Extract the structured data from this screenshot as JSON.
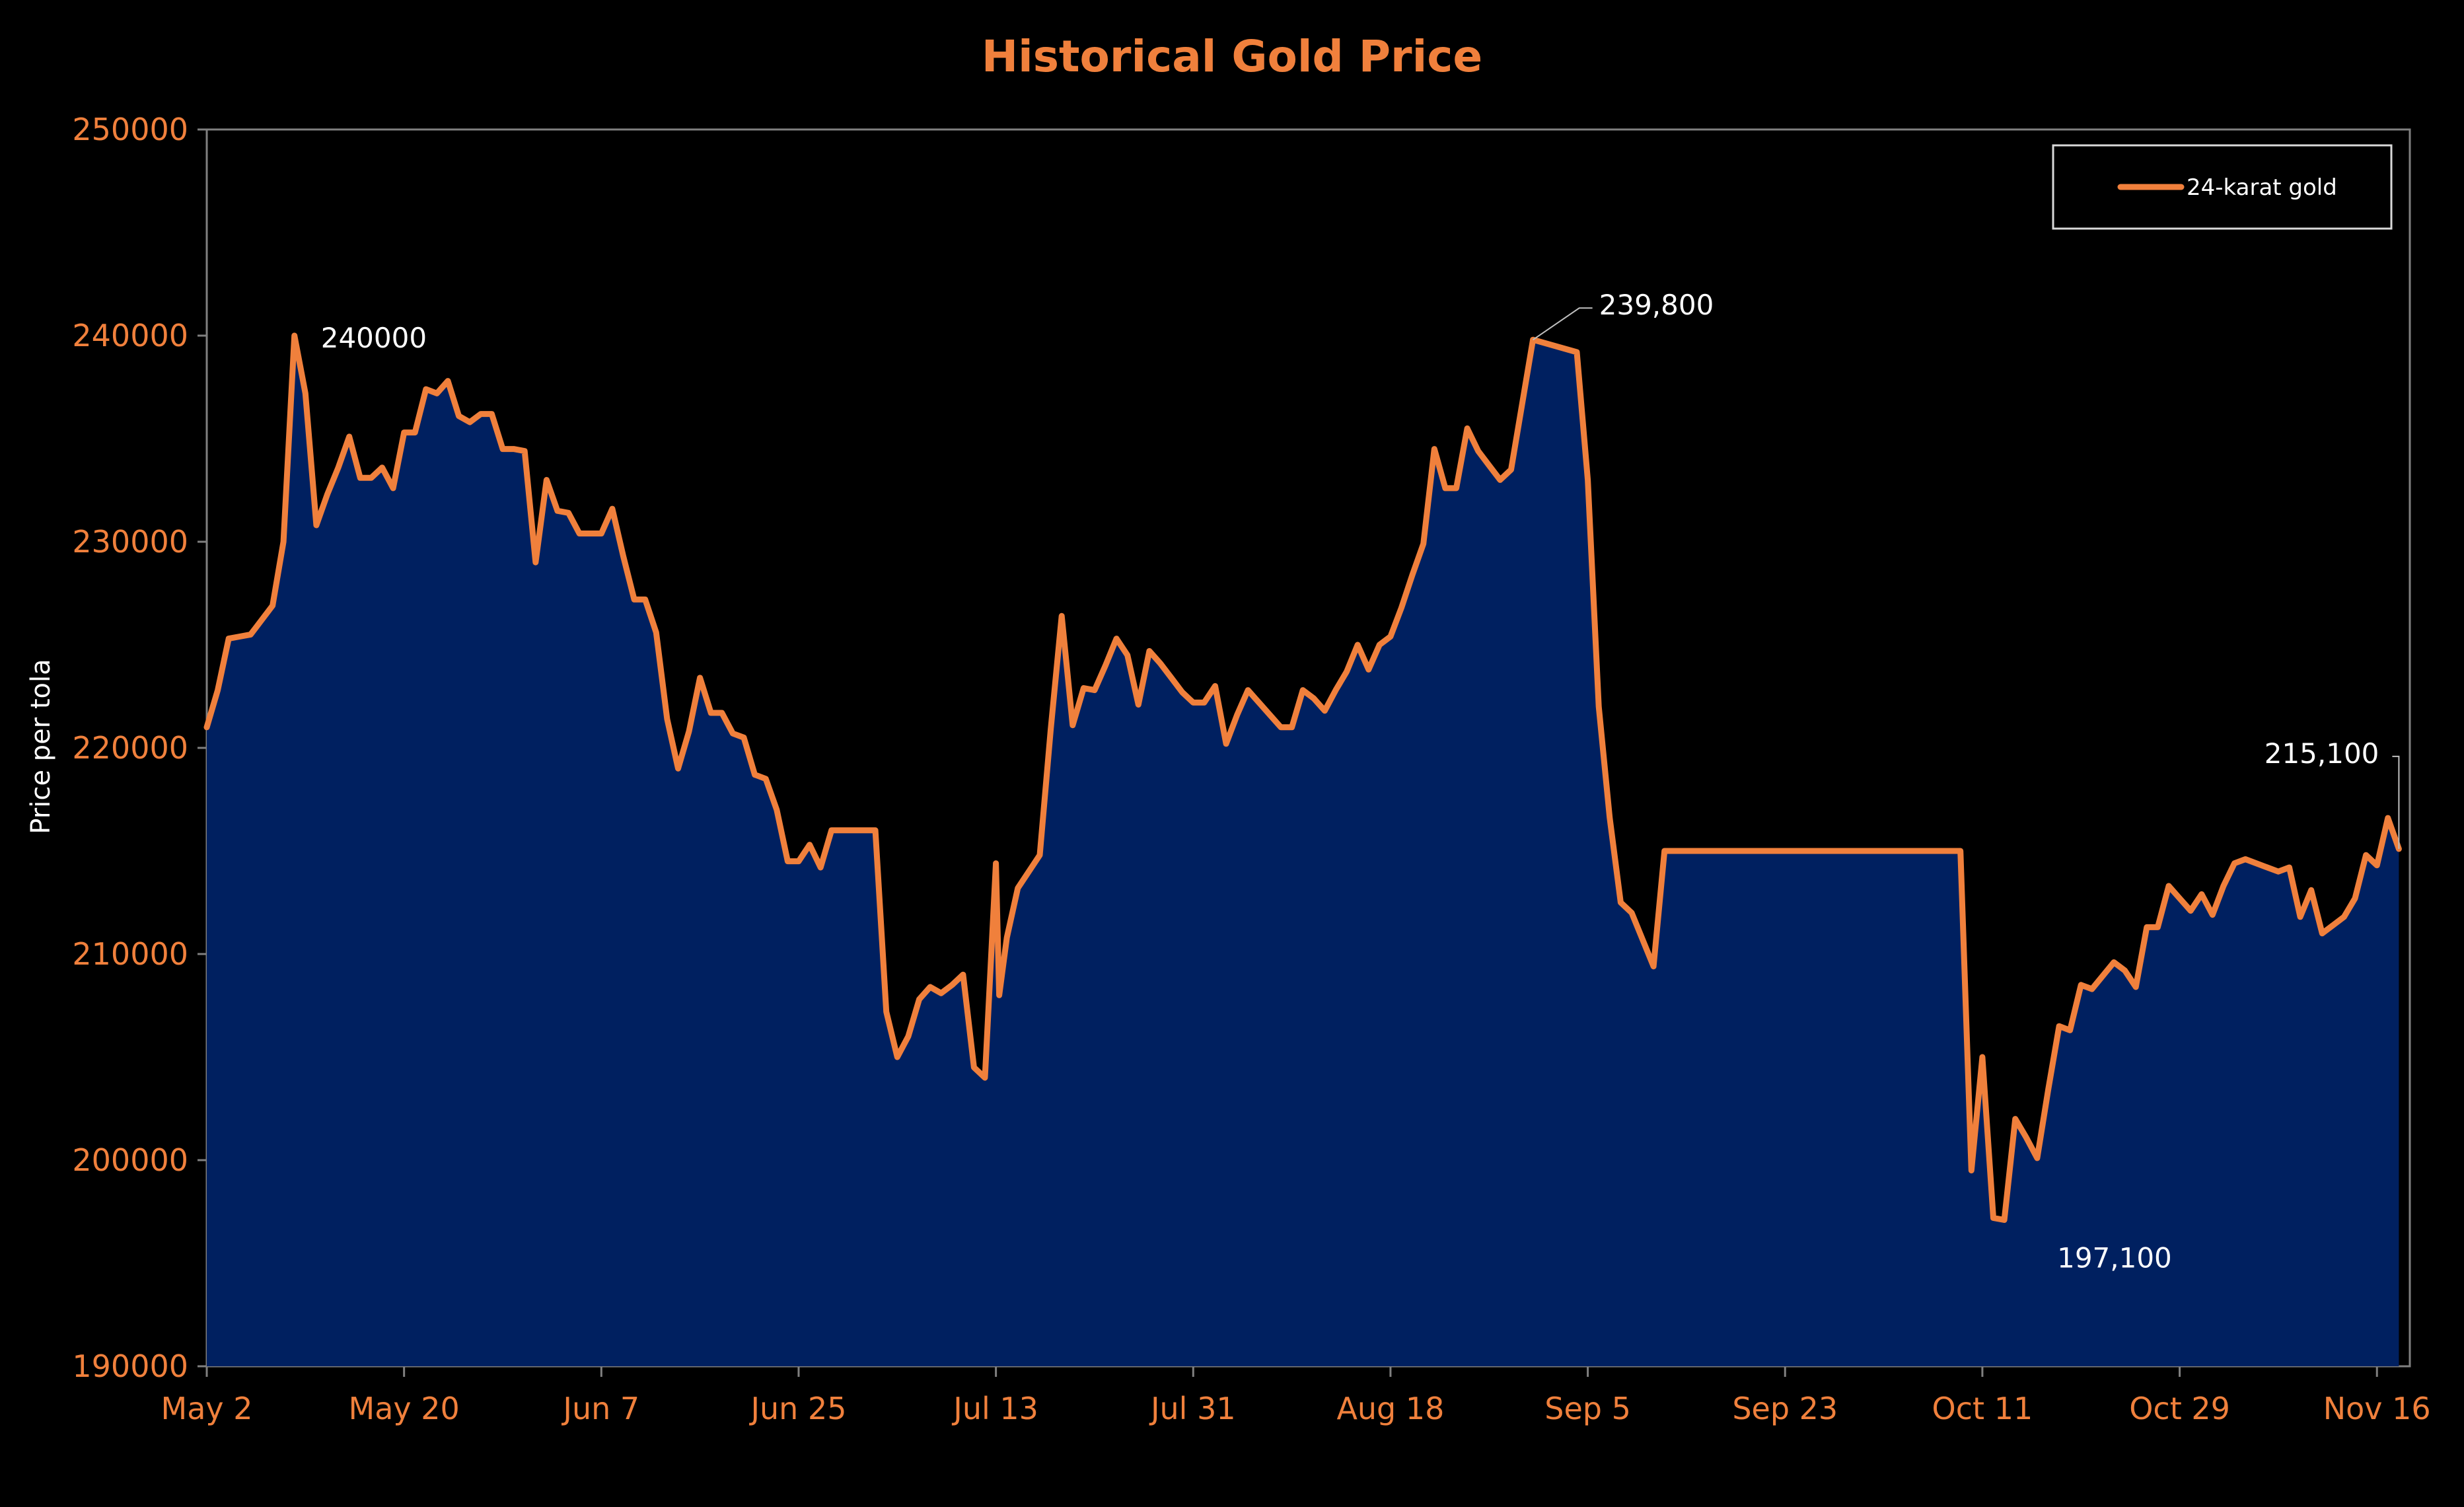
{
  "chart_data": {
    "type": "area",
    "title": "Historical Gold Price",
    "ylabel": "Price per tola",
    "xlabel": "",
    "ylim": [
      190000,
      250000
    ],
    "y_ticks": [
      190000,
      200000,
      210000,
      220000,
      230000,
      240000,
      250000
    ],
    "x_range_days": [
      0,
      201
    ],
    "x_ticks": [
      {
        "day": 0,
        "label": "May 2"
      },
      {
        "day": 18,
        "label": "May 20"
      },
      {
        "day": 36,
        "label": "Jun 7"
      },
      {
        "day": 54,
        "label": "Jun 25"
      },
      {
        "day": 72,
        "label": "Jul 13"
      },
      {
        "day": 90,
        "label": "Jul 31"
      },
      {
        "day": 108,
        "label": "Aug 18"
      },
      {
        "day": 126,
        "label": "Sep 5"
      },
      {
        "day": 144,
        "label": "Sep 23"
      },
      {
        "day": 162,
        "label": "Oct 11"
      },
      {
        "day": 180,
        "label": "Oct 29"
      },
      {
        "day": 198,
        "label": "Nov 16"
      }
    ],
    "grid": false,
    "legend_position": "top-right",
    "series": [
      {
        "name": "24-karat gold",
        "color": "#f0803c",
        "fill": "#002060",
        "points": [
          [
            0,
            221000
          ],
          [
            1,
            222800
          ],
          [
            2,
            225300
          ],
          [
            3,
            225400
          ],
          [
            4,
            225500
          ],
          [
            6,
            226900
          ],
          [
            7,
            230000
          ],
          [
            8,
            240000
          ],
          [
            9,
            237200
          ],
          [
            10,
            230800
          ],
          [
            11,
            232300
          ],
          [
            12,
            233600
          ],
          [
            13,
            235100
          ],
          [
            14,
            233100
          ],
          [
            15,
            233100
          ],
          [
            16,
            233600
          ],
          [
            17,
            232600
          ],
          [
            18,
            235300
          ],
          [
            19,
            235300
          ],
          [
            20,
            237400
          ],
          [
            21,
            237200
          ],
          [
            22,
            237800
          ],
          [
            23,
            236100
          ],
          [
            24,
            235800
          ],
          [
            25,
            236200
          ],
          [
            26,
            236200
          ],
          [
            27,
            234500
          ],
          [
            28,
            234500
          ],
          [
            29,
            234400
          ],
          [
            30,
            229000
          ],
          [
            31,
            233000
          ],
          [
            32,
            231500
          ],
          [
            33,
            231400
          ],
          [
            34,
            230400
          ],
          [
            35,
            230400
          ],
          [
            36,
            230400
          ],
          [
            37,
            231600
          ],
          [
            38,
            229300
          ],
          [
            39,
            227200
          ],
          [
            40,
            227200
          ],
          [
            41,
            225600
          ],
          [
            42,
            221400
          ],
          [
            43,
            219000
          ],
          [
            44,
            220800
          ],
          [
            45,
            223400
          ],
          [
            46,
            221700
          ],
          [
            47,
            221700
          ],
          [
            48,
            220700
          ],
          [
            49,
            220500
          ],
          [
            50,
            218700
          ],
          [
            51,
            218500
          ],
          [
            52,
            217000
          ],
          [
            53,
            214500
          ],
          [
            54,
            214500
          ],
          [
            55,
            215300
          ],
          [
            56,
            214200
          ],
          [
            57,
            216000
          ],
          [
            58,
            216000
          ],
          [
            60,
            216000
          ],
          [
            61,
            216000
          ],
          [
            62,
            207200
          ],
          [
            63,
            205000
          ],
          [
            64,
            206000
          ],
          [
            65,
            207800
          ],
          [
            66,
            208400
          ],
          [
            67,
            208100
          ],
          [
            68,
            208500
          ],
          [
            69,
            209000
          ],
          [
            70,
            204500
          ],
          [
            71,
            204000
          ],
          [
            72,
            214400
          ],
          [
            72.3,
            208000
          ],
          [
            73,
            210800
          ],
          [
            74,
            213200
          ],
          [
            75,
            214000
          ],
          [
            76,
            214800
          ],
          [
            77,
            220900
          ],
          [
            78,
            226400
          ],
          [
            79,
            221100
          ],
          [
            80,
            222900
          ],
          [
            81,
            222800
          ],
          [
            82,
            224000
          ],
          [
            83,
            225300
          ],
          [
            84,
            224500
          ],
          [
            85,
            222100
          ],
          [
            86,
            224700
          ],
          [
            87,
            224100
          ],
          [
            88,
            223400
          ],
          [
            89,
            222700
          ],
          [
            90,
            222200
          ],
          [
            91,
            222200
          ],
          [
            92,
            223000
          ],
          [
            93,
            220200
          ],
          [
            94,
            221600
          ],
          [
            95,
            222800
          ],
          [
            96,
            222200
          ],
          [
            97,
            221600
          ],
          [
            98,
            221000
          ],
          [
            99,
            221000
          ],
          [
            100,
            222800
          ],
          [
            101,
            222400
          ],
          [
            102,
            221800
          ],
          [
            103,
            222800
          ],
          [
            104,
            223700
          ],
          [
            105,
            225000
          ],
          [
            106,
            223800
          ],
          [
            107,
            225000
          ],
          [
            108,
            225400
          ],
          [
            109,
            226800
          ],
          [
            110,
            228400
          ],
          [
            111,
            229900
          ],
          [
            112,
            234500
          ],
          [
            113,
            232600
          ],
          [
            114,
            232600
          ],
          [
            115,
            235500
          ],
          [
            116,
            234400
          ],
          [
            117,
            233700
          ],
          [
            118,
            233000
          ],
          [
            119,
            233500
          ],
          [
            121,
            239800
          ],
          [
            125,
            239200
          ],
          [
            126,
            233000
          ],
          [
            127,
            222000
          ],
          [
            128,
            216600
          ],
          [
            129,
            212500
          ],
          [
            130,
            212000
          ],
          [
            132,
            209400
          ],
          [
            133,
            215000
          ],
          [
            160,
            215000
          ],
          [
            161,
            199500
          ],
          [
            162,
            205000
          ],
          [
            163,
            197200
          ],
          [
            164,
            197100
          ],
          [
            165,
            202000
          ],
          [
            166,
            201100
          ],
          [
            167,
            200100
          ],
          [
            168,
            203400
          ],
          [
            169,
            206500
          ],
          [
            170,
            206300
          ],
          [
            171,
            208500
          ],
          [
            172,
            208300
          ],
          [
            174,
            209600
          ],
          [
            175,
            209200
          ],
          [
            176,
            208400
          ],
          [
            177,
            211300
          ],
          [
            178,
            211300
          ],
          [
            179,
            213300
          ],
          [
            180,
            212700
          ],
          [
            181,
            212100
          ],
          [
            182,
            212900
          ],
          [
            183,
            211900
          ],
          [
            184,
            213300
          ],
          [
            185,
            214400
          ],
          [
            186,
            214600
          ],
          [
            188,
            214200
          ],
          [
            189,
            214000
          ],
          [
            190,
            214200
          ],
          [
            191,
            211800
          ],
          [
            192,
            213100
          ],
          [
            193,
            211000
          ],
          [
            194,
            211400
          ],
          [
            195,
            211800
          ],
          [
            196,
            212700
          ],
          [
            197,
            214800
          ],
          [
            198,
            214300
          ],
          [
            199,
            216600
          ],
          [
            200,
            215100
          ]
        ]
      }
    ],
    "annotations": [
      {
        "day": 8,
        "value": 240000,
        "text": "240000"
      },
      {
        "day": 121,
        "value": 239800,
        "text": "239,800"
      },
      {
        "day": 164,
        "value": 197100,
        "text": "197,100"
      },
      {
        "day": 200,
        "value": 215100,
        "text": "215,100"
      }
    ]
  }
}
